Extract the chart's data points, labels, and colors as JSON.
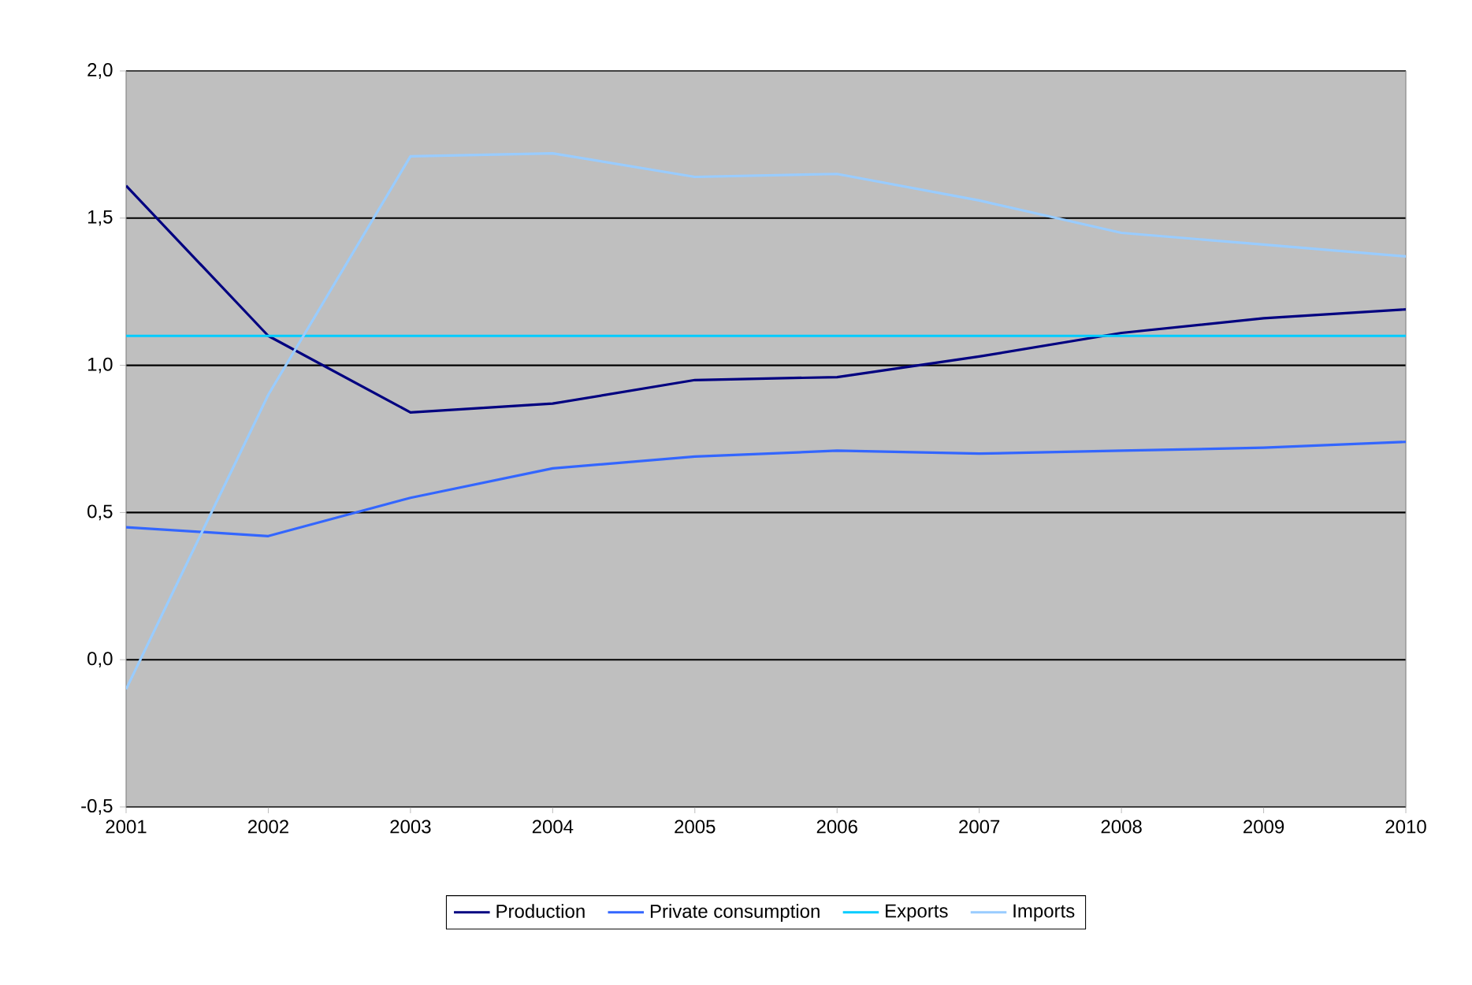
{
  "chart_data": {
    "type": "line",
    "x": [
      2001,
      2002,
      2003,
      2004,
      2005,
      2006,
      2007,
      2008,
      2009,
      2010
    ],
    "series": [
      {
        "name": "Production",
        "color": "#000080",
        "values": [
          1.61,
          1.1,
          0.84,
          0.87,
          0.95,
          0.96,
          1.03,
          1.11,
          1.16,
          1.19
        ]
      },
      {
        "name": "Private consumption",
        "color": "#3366ff",
        "values": [
          0.45,
          0.42,
          0.55,
          0.65,
          0.69,
          0.71,
          0.7,
          0.71,
          0.72,
          0.74
        ]
      },
      {
        "name": "Exports",
        "color": "#00ccff",
        "values": [
          1.1,
          1.1,
          1.1,
          1.1,
          1.1,
          1.1,
          1.1,
          1.1,
          1.1,
          1.1
        ]
      },
      {
        "name": "Imports",
        "color": "#99ccff",
        "values": [
          -0.1,
          0.9,
          1.71,
          1.72,
          1.64,
          1.65,
          1.56,
          1.45,
          1.41,
          1.37
        ]
      }
    ],
    "xlim": [
      2001,
      2010
    ],
    "xticks": [
      2001,
      2002,
      2003,
      2004,
      2005,
      2006,
      2007,
      2008,
      2009,
      2010
    ],
    "ylim": [
      -0.5,
      2.0
    ],
    "yticks": [
      {
        "value": -0.5,
        "label": "-0,5"
      },
      {
        "value": 0,
        "label": "0,0"
      },
      {
        "value": 0.5,
        "label": "0,5"
      },
      {
        "value": 1.0,
        "label": "1,0"
      },
      {
        "value": 1.5,
        "label": "1,5"
      },
      {
        "value": 2.0,
        "label": "2,0"
      }
    ],
    "grid": "y",
    "legend": "bottom",
    "marker": "none",
    "line_style": "solid"
  }
}
